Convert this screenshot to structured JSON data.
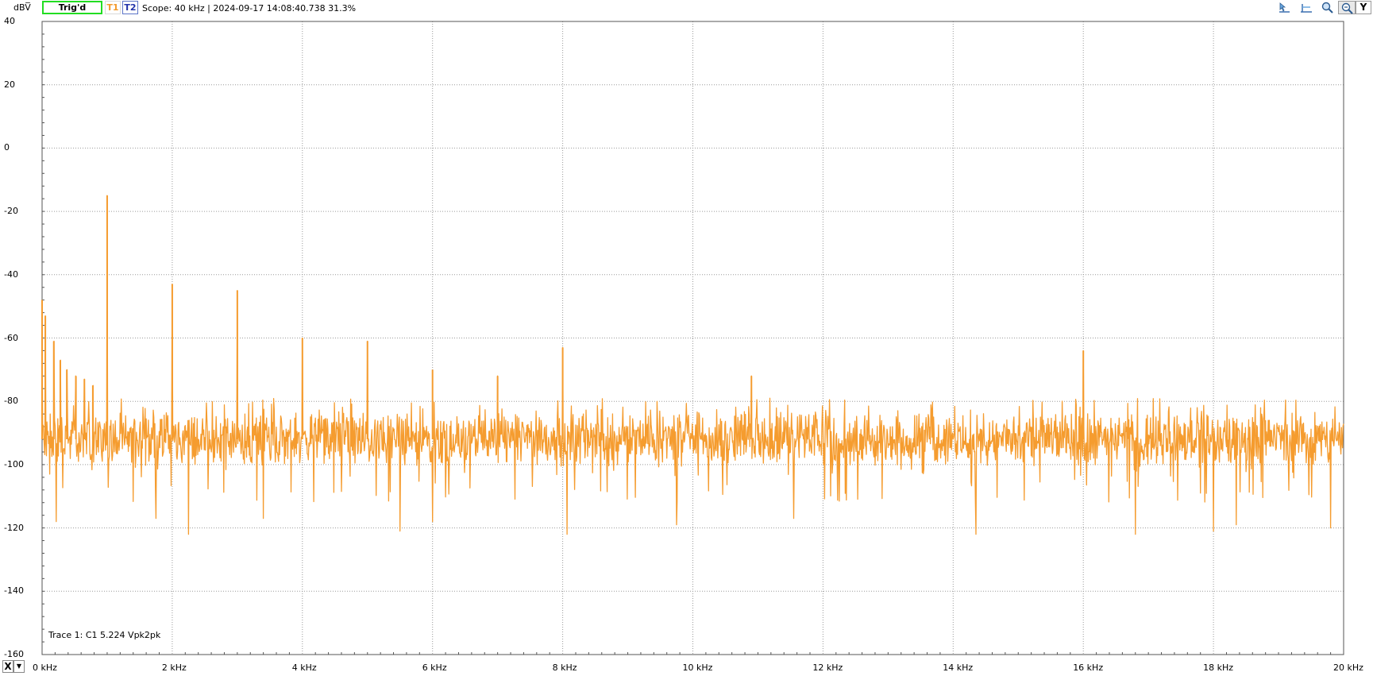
{
  "toolbar": {
    "unit": "dBV̅",
    "trig_status": "Trig'd",
    "t1_label": "T1",
    "t2_label": "T2",
    "scope_info": "Scope: 40 kHz | 2024-09-17 14:08:40.738 31.3%",
    "y_button": "Y",
    "x_button": "X",
    "icons": [
      "cursor-marker-icon",
      "horizontal-marker-icon",
      "zoom-icon",
      "zoom-fit-icon"
    ]
  },
  "trace_info": "Trace 1: C1 5.224 Vpk2pk",
  "colors": {
    "trace": "#f59c2f",
    "grid": "#9a9a9a",
    "trig": "#22dd22"
  },
  "chart_data": {
    "type": "line",
    "xlabel": "",
    "ylabel": "dBV̅",
    "xlim": [
      0,
      20
    ],
    "ylim": [
      -160,
      40
    ],
    "x_ticks": [
      "0 kHz",
      "2 kHz",
      "4 kHz",
      "6 kHz",
      "8 kHz",
      "10 kHz",
      "12 kHz",
      "14 kHz",
      "16 kHz",
      "18 kHz",
      "20 kHz"
    ],
    "y_ticks": [
      "40",
      "20",
      "0",
      "-20",
      "-40",
      "-60",
      "-80",
      "-100",
      "-120",
      "-140",
      "-160"
    ],
    "grid": true,
    "noise_floor_dbv": -92,
    "series": [
      {
        "peaks": [
          {
            "x": 0.0,
            "y": -48
          },
          {
            "x": 0.05,
            "y": -53
          },
          {
            "x": 0.18,
            "y": -61
          },
          {
            "x": 0.28,
            "y": -67
          },
          {
            "x": 0.38,
            "y": -70
          },
          {
            "x": 0.52,
            "y": -72
          },
          {
            "x": 0.65,
            "y": -73
          },
          {
            "x": 0.78,
            "y": -75
          },
          {
            "x": 1.0,
            "y": -15
          },
          {
            "x": 2.0,
            "y": -43
          },
          {
            "x": 3.0,
            "y": -45
          },
          {
            "x": 4.0,
            "y": -60
          },
          {
            "x": 5.0,
            "y": -61
          },
          {
            "x": 6.0,
            "y": -70
          },
          {
            "x": 7.0,
            "y": -72
          },
          {
            "x": 8.0,
            "y": -63
          },
          {
            "x": 10.9,
            "y": -72
          },
          {
            "x": 16.0,
            "y": -64
          }
        ],
        "dips": [
          {
            "x": 0.22,
            "y": -118
          },
          {
            "x": 1.75,
            "y": -117
          },
          {
            "x": 2.25,
            "y": -122
          },
          {
            "x": 3.4,
            "y": -117
          },
          {
            "x": 5.5,
            "y": -121
          },
          {
            "x": 6.0,
            "y": -118
          },
          {
            "x": 8.07,
            "y": -122
          },
          {
            "x": 9.75,
            "y": -119
          },
          {
            "x": 11.55,
            "y": -117
          },
          {
            "x": 14.35,
            "y": -122
          },
          {
            "x": 16.8,
            "y": -122
          },
          {
            "x": 18.0,
            "y": -121
          },
          {
            "x": 18.35,
            "y": -119
          },
          {
            "x": 19.8,
            "y": -120
          }
        ]
      }
    ]
  }
}
